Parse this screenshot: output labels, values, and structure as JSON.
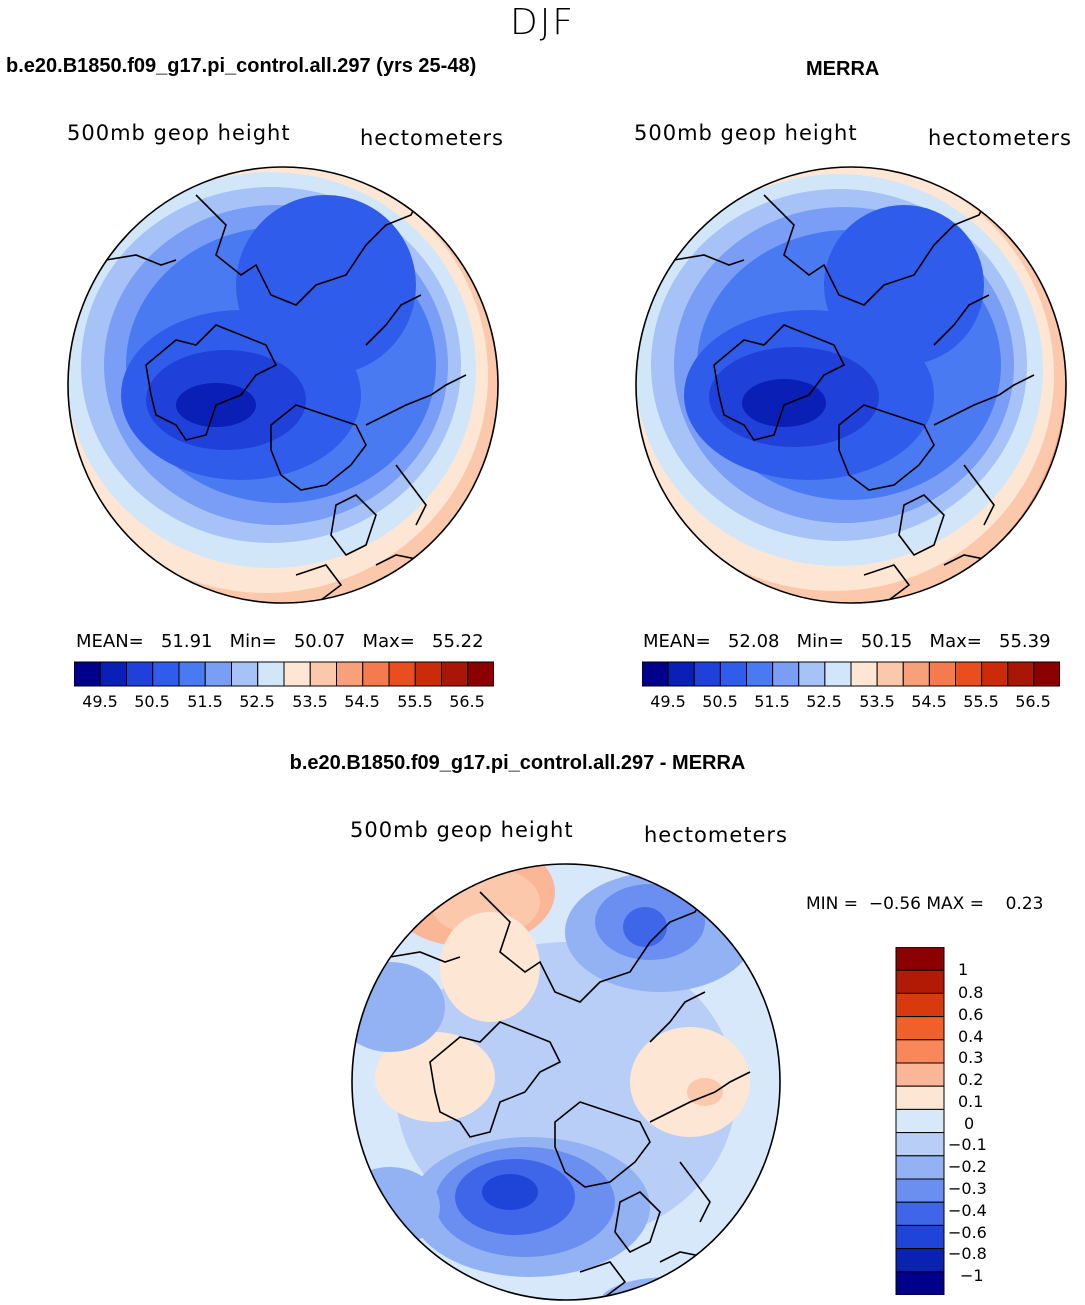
{
  "page": {
    "season": "DJF"
  },
  "panel_left": {
    "title": "b.e20.B1850.f09_g17.pi_control.all.297 (yrs 25-48)",
    "field": "500mb geop height",
    "units": "hectometers",
    "mean_label": "MEAN=",
    "mean_value": "51.91",
    "min_label": "Min=",
    "min_value": "50.07",
    "max_label": "Max=",
    "max_value": "55.22",
    "colorbar_ticks": [
      "49.5",
      "50.5",
      "51.5",
      "52.5",
      "53.5",
      "54.5",
      "55.5",
      "56.5"
    ]
  },
  "panel_right": {
    "title": "MERRA",
    "field": "500mb geop height",
    "units": "hectometers",
    "mean_label": "MEAN=",
    "mean_value": "52.08",
    "min_label": "Min=",
    "min_value": "50.15",
    "max_label": "Max=",
    "max_value": "55.39",
    "colorbar_ticks": [
      "49.5",
      "50.5",
      "51.5",
      "52.5",
      "53.5",
      "54.5",
      "55.5",
      "56.5"
    ]
  },
  "panel_diff": {
    "title": "b.e20.B1850.f09_g17.pi_control.all.297 - MERRA",
    "field": "500mb geop height",
    "units": "hectometers",
    "min_label": "MIN =",
    "min_value": "−0.56",
    "max_label": "MAX =",
    "max_value": "0.23",
    "colorbar_ticks": [
      "1",
      "0.8",
      "0.6",
      "0.4",
      "0.3",
      "0.2",
      "0.1",
      "0",
      "−0.1",
      "−0.2",
      "−0.3",
      "−0.4",
      "−0.6",
      "−0.8",
      "−1"
    ]
  },
  "colors": {
    "abs_scale": [
      "#00008b",
      "#0a1fb5",
      "#1f40d9",
      "#2f5ceb",
      "#4a7af2",
      "#7a9df5",
      "#a6c2f7",
      "#d2e6fa",
      "#fde6d4",
      "#fbc8ab",
      "#f8a07a",
      "#f57a4d",
      "#ea4e1e",
      "#cc2b0a",
      "#a81607",
      "#8b0000"
    ],
    "diff_scale": [
      "#8b0000",
      "#b31a06",
      "#d93a0d",
      "#f06029",
      "#f8875a",
      "#fbb597",
      "#fde6d4",
      "#d8e8fb",
      "#b8cef7",
      "#93b2f3",
      "#6a8ff0",
      "#3f66e8",
      "#1f45d8",
      "#0a22b0",
      "#00008b"
    ]
  }
}
